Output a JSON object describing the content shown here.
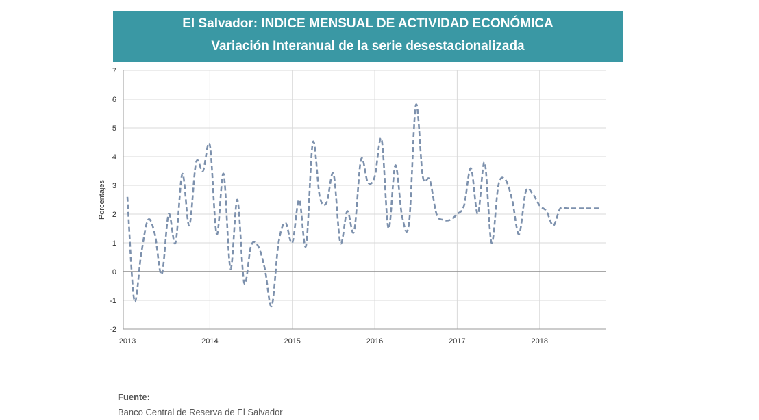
{
  "header": {
    "title": "El Salvador: INDICE MENSUAL DE ACTIVIDAD ECONÓMICA",
    "subtitle": "Variación Interanual de la serie desestacionalizada"
  },
  "source": {
    "label": "Fuente:",
    "text": "Banco Central de Reserva de El Salvador"
  },
  "colors": {
    "header_bg": "#3a98a4",
    "line": "#7d91ad",
    "zero_line": "#8c8c8c",
    "grid": "#d9d9d9"
  },
  "chart_data": {
    "type": "line",
    "title": "",
    "xlabel": "",
    "ylabel": "Porcentajes",
    "ylim": [
      -2,
      7
    ],
    "y_ticks": [
      -2,
      -1,
      0,
      1,
      2,
      3,
      4,
      5,
      6,
      7
    ],
    "x_ticks": [
      "2013",
      "2014",
      "2015",
      "2016",
      "2017",
      "2018"
    ],
    "x_range": [
      "2013-01",
      "2018-10"
    ],
    "grid": true,
    "line_style": "dashed",
    "series": [
      {
        "x": [
          "2013-01",
          "2013-02",
          "2013-03",
          "2013-04",
          "2013-05",
          "2013-06",
          "2013-07",
          "2013-08",
          "2013-09",
          "2013-10",
          "2013-11",
          "2013-12",
          "2014-01",
          "2014-02",
          "2014-03",
          "2014-04",
          "2014-05",
          "2014-06",
          "2014-07",
          "2014-08",
          "2014-09",
          "2014-10",
          "2014-11",
          "2014-12",
          "2015-01",
          "2015-02",
          "2015-03",
          "2015-04",
          "2015-05",
          "2015-06",
          "2015-07",
          "2015-08",
          "2015-09",
          "2015-10",
          "2015-11",
          "2015-12",
          "2016-01",
          "2016-02",
          "2016-03",
          "2016-04",
          "2016-05",
          "2016-06",
          "2016-07",
          "2016-08",
          "2016-09",
          "2016-10",
          "2016-11",
          "2016-12",
          "2017-01",
          "2017-02",
          "2017-03",
          "2017-04",
          "2017-05",
          "2017-06",
          "2017-07",
          "2017-08",
          "2017-09",
          "2017-10",
          "2017-11",
          "2017-12",
          "2018-01",
          "2018-02",
          "2018-03",
          "2018-04",
          "2018-05",
          "2018-06",
          "2018-07",
          "2018-08",
          "2018-09",
          "2018-10"
        ],
        "values": [
          2.6,
          -1.0,
          0.6,
          1.8,
          1.3,
          -0.1,
          2.0,
          1.0,
          3.4,
          1.6,
          3.8,
          3.5,
          4.4,
          1.3,
          3.4,
          0.1,
          2.5,
          -0.4,
          0.9,
          0.9,
          0.1,
          -1.2,
          1.0,
          1.7,
          1.0,
          2.5,
          0.9,
          4.5,
          2.6,
          2.4,
          3.4,
          1.0,
          2.1,
          1.4,
          3.9,
          3.1,
          3.3,
          4.6,
          1.5,
          3.7,
          1.9,
          1.7,
          5.8,
          3.3,
          3.2,
          2.0,
          1.8,
          1.8,
          2.0,
          2.3,
          3.6,
          2.0,
          3.8,
          1.0,
          3.0,
          3.2,
          2.5,
          1.3,
          2.8,
          2.7,
          2.3,
          2.1,
          1.6,
          2.2,
          2.2,
          2.2,
          2.2,
          2.2,
          2.2,
          2.2
        ]
      }
    ]
  }
}
